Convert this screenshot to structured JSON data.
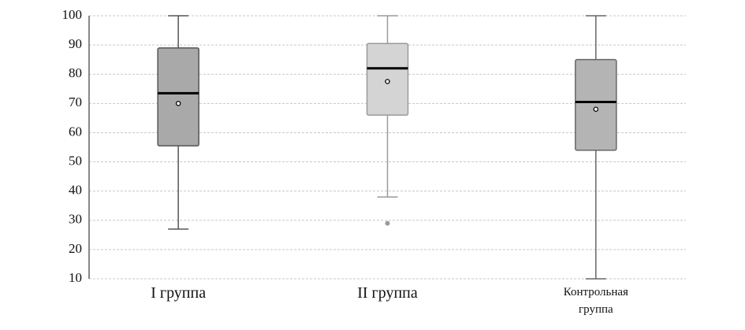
{
  "chart_data": {
    "type": "box",
    "categories": [
      "I группа",
      "II группа",
      "Контрольная группа"
    ],
    "boxes": [
      {
        "min": 27,
        "q1": 55.5,
        "median": 73.5,
        "q3": 89,
        "max": 100,
        "mean": 70,
        "outliers": [],
        "fill": "#a9a9a9",
        "stroke": "#555555"
      },
      {
        "min": 38,
        "q1": 66,
        "median": 82,
        "q3": 90.5,
        "max": 100,
        "mean": 77.5,
        "outliers": [
          29
        ],
        "fill": "#d4d4d4",
        "stroke": "#9a9a9a"
      },
      {
        "min": 10,
        "q1": 54,
        "median": 70.5,
        "q3": 85,
        "max": 100,
        "mean": 68,
        "outliers": [],
        "fill": "#b4b4b4",
        "stroke": "#666666"
      }
    ],
    "ylim": [
      10,
      100
    ],
    "yticks": [
      10,
      20,
      30,
      40,
      50,
      60,
      70,
      80,
      90,
      100
    ],
    "grid": true
  }
}
